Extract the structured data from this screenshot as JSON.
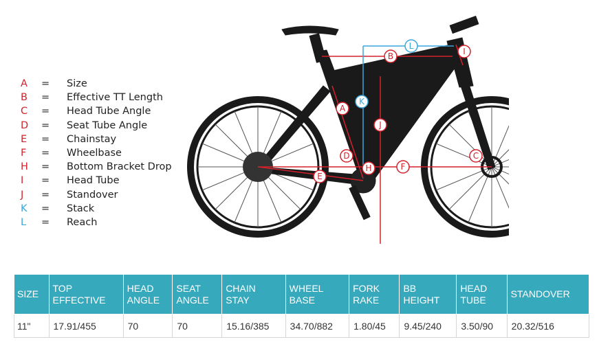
{
  "legend": [
    {
      "letter": "A",
      "term": "Size",
      "color": "red"
    },
    {
      "letter": "B",
      "term": "Effective TT Length",
      "color": "red"
    },
    {
      "letter": "C",
      "term": "Head Tube Angle",
      "color": "red"
    },
    {
      "letter": "D",
      "term": "Seat Tube Angle",
      "color": "red"
    },
    {
      "letter": "E",
      "term": "Chainstay",
      "color": "red"
    },
    {
      "letter": "F",
      "term": "Wheelbase",
      "color": "red"
    },
    {
      "letter": "H",
      "term": "Bottom Bracket Drop",
      "color": "red"
    },
    {
      "letter": "I",
      "term": "Head Tube",
      "color": "red"
    },
    {
      "letter": "J",
      "term": "Standover",
      "color": "red"
    },
    {
      "letter": "K",
      "term": "Stack",
      "color": "blue"
    },
    {
      "letter": "L",
      "term": "Reach",
      "color": "blue"
    }
  ],
  "legend_separator": "=",
  "diagram_labels": {
    "A": "A",
    "B": "B",
    "C": "C",
    "D": "D",
    "E": "E",
    "F": "F",
    "H": "H",
    "I": "I",
    "J": "J",
    "K": "K",
    "L": "L"
  },
  "colors": {
    "red": "#d4212b",
    "blue": "#3aa6dc",
    "header": "#37a9bd",
    "frame": "#1a1a1a"
  },
  "table": {
    "headers": [
      [
        "SIZE"
      ],
      [
        "TOP",
        "EFFECTIVE"
      ],
      [
        "HEAD",
        "ANGLE"
      ],
      [
        "SEAT",
        "ANGLE"
      ],
      [
        "CHAIN",
        "STAY"
      ],
      [
        "WHEEL",
        "BASE"
      ],
      [
        "FORK",
        "RAKE"
      ],
      [
        "BB",
        "HEIGHT"
      ],
      [
        "HEAD",
        "TUBE"
      ],
      [
        "STANDOVER"
      ]
    ],
    "rows": [
      [
        "11\"",
        "17.91/455",
        "70",
        "70",
        "15.16/385",
        "34.70/882",
        "1.80/45",
        "9.45/240",
        "3.50/90",
        "20.32/516"
      ]
    ]
  }
}
